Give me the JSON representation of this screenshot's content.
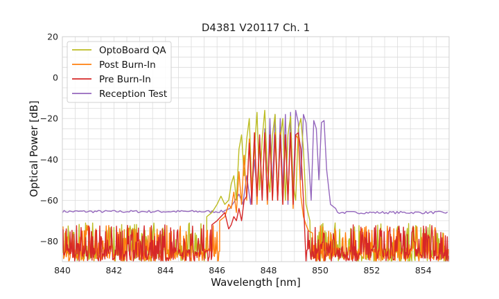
{
  "chart_data": {
    "type": "line",
    "title": "D4381 V20117 Ch. 1",
    "xlabel": "Wavelength [nm]",
    "ylabel": "Optical Power [dB]",
    "xlim": [
      840,
      855
    ],
    "ylim": [
      -90,
      20
    ],
    "xticks": [
      840,
      842,
      844,
      846,
      848,
      850,
      852,
      854
    ],
    "yticks": [
      20,
      0,
      -20,
      -40,
      -60,
      -80
    ],
    "grid": true,
    "legend": "top-left",
    "series": [
      {
        "name": "OptoBoard QA",
        "color": "#bcbd22",
        "noise_floor": {
          "x_range": [
            840,
            845.6
          ],
          "min": -90,
          "max": -71
        },
        "x": [
          845.6,
          845.8,
          846.0,
          846.15,
          846.3,
          846.45,
          846.55,
          846.65,
          846.75,
          846.85,
          846.95,
          847.05,
          847.15,
          847.25,
          847.35,
          847.45,
          847.55,
          847.65,
          847.75,
          847.85,
          847.95,
          848.05,
          848.15,
          848.25,
          848.35,
          848.45,
          848.55,
          848.65,
          848.75,
          848.85,
          848.95,
          849.05,
          849.15,
          849.25,
          849.35,
          849.45,
          849.6
        ],
        "y": [
          -68,
          -66,
          -62,
          -58,
          -62,
          -60,
          -52,
          -48,
          -60,
          -35,
          -28,
          -48,
          -30,
          -20,
          -55,
          -35,
          -17,
          -55,
          -30,
          -16,
          -45,
          -56,
          -28,
          -18,
          -58,
          -30,
          -20,
          -60,
          -28,
          -19,
          -52,
          -60,
          -25,
          -20,
          -35,
          -62,
          -70
        ]
      },
      {
        "name": "Post Burn-In",
        "color": "#ff7f0e",
        "noise_floor": {
          "x_range": [
            840,
            846.1
          ],
          "min": -90,
          "max": -72
        },
        "x": [
          846.1,
          846.3,
          846.45,
          846.55,
          846.65,
          846.75,
          846.85,
          846.95,
          847.05,
          847.15,
          847.25,
          847.35,
          847.45,
          847.55,
          847.65,
          847.75,
          847.85,
          847.95,
          848.05,
          848.15,
          848.25,
          848.35,
          848.45,
          848.55,
          848.65,
          848.75,
          848.85,
          848.95,
          849.05,
          849.15,
          849.25,
          849.35,
          849.45,
          849.55,
          849.7
        ],
        "y": [
          -70,
          -68,
          -62,
          -64,
          -56,
          -66,
          -46,
          -62,
          -38,
          -60,
          -30,
          -58,
          -27,
          -62,
          -30,
          -56,
          -28,
          -62,
          -30,
          -60,
          -27,
          -60,
          -27,
          -62,
          -28,
          -60,
          -27,
          -64,
          -28,
          -30,
          -58,
          -68,
          -72,
          -75,
          -76
        ]
      },
      {
        "name": "Pre Burn-In",
        "color": "#d62728",
        "noise_floor": {
          "x_range": [
            840,
            845.8
          ],
          "min": -90,
          "max": -72
        },
        "x": [
          845.8,
          846.0,
          846.15,
          846.3,
          846.45,
          846.55,
          846.65,
          846.75,
          846.85,
          846.95,
          847.05,
          847.15,
          847.25,
          847.35,
          847.45,
          847.55,
          847.65,
          847.75,
          847.85,
          847.95,
          848.05,
          848.15,
          848.25,
          848.35,
          848.45,
          848.55,
          848.65,
          848.75,
          848.85,
          848.95,
          849.05,
          849.15,
          849.25,
          849.35,
          849.45
        ],
        "y": [
          -72,
          -70,
          -68,
          -66,
          -74,
          -72,
          -68,
          -70,
          -64,
          -70,
          -60,
          -58,
          -32,
          -62,
          -27,
          -58,
          -28,
          -60,
          -27,
          -60,
          -28,
          -60,
          -28,
          -60,
          -28,
          -62,
          -28,
          -60,
          -27,
          -62,
          -28,
          -27,
          -35,
          -60,
          -90
        ]
      },
      {
        "name": "Reception Test",
        "color": "#9467bd",
        "baseline": {
          "x_range": [
            840,
            855
          ],
          "level": -65.5
        },
        "x": [
          846.3,
          846.5,
          846.7,
          846.85,
          847.0,
          847.15,
          847.3,
          847.45,
          847.55,
          847.65,
          847.75,
          847.85,
          847.95,
          848.05,
          848.15,
          848.25,
          848.35,
          848.45,
          848.55,
          848.65,
          848.75,
          848.85,
          848.95,
          849.05,
          849.15,
          849.25,
          849.35,
          849.45,
          849.55,
          849.65,
          849.75,
          849.85,
          849.95,
          850.05,
          850.15,
          850.25,
          850.4,
          850.6
        ],
        "y": [
          -65,
          -64,
          -60,
          -57,
          -62,
          -48,
          -62,
          -40,
          -58,
          -32,
          -60,
          -25,
          -60,
          -20,
          -55,
          -18,
          -60,
          -20,
          -55,
          -18,
          -62,
          -17,
          -58,
          -16,
          -22,
          -50,
          -18,
          -22,
          -40,
          -60,
          -21,
          -25,
          -50,
          -22,
          -21,
          -45,
          -62,
          -64
        ]
      }
    ]
  }
}
